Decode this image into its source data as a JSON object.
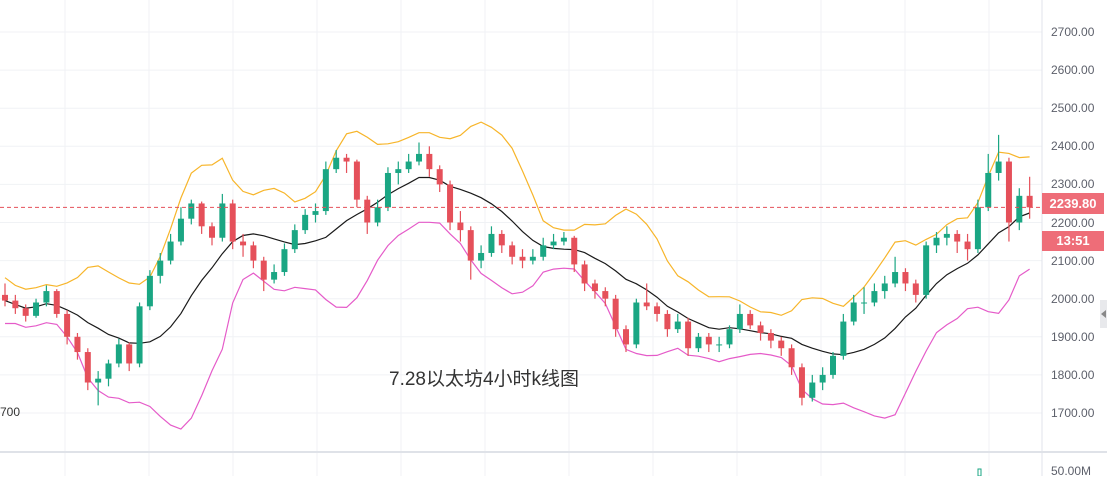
{
  "chart_data": {
    "type": "candlestick",
    "title": "7.28以太坊4小时k线图",
    "ylim": [
      1700,
      2700
    ],
    "y_ticks": [
      "2700.00",
      "2600.00",
      "2500.00",
      "2400.00",
      "2300.00",
      "2200.00",
      "2100.00",
      "2000.00",
      "1900.00",
      "1800.00",
      "1700.00"
    ],
    "left_partial_label": "700",
    "volume_tick": "50.00M",
    "last_price": "2239.80",
    "countdown": "13:51",
    "grid": true,
    "colors": {
      "up": "#1aa683",
      "down": "#e5505a",
      "upper_band": "#f7b52a",
      "lower_band": "#e55bc9",
      "middle_band": "#1a1a1a",
      "price_tag": "#ee6d78"
    },
    "ohlc": [
      [
        2010,
        2040,
        1980,
        1995
      ],
      [
        1995,
        2010,
        1960,
        1975
      ],
      [
        1975,
        1985,
        1940,
        1955
      ],
      [
        1955,
        2000,
        1950,
        1990
      ],
      [
        1990,
        2035,
        1980,
        2020
      ],
      [
        2020,
        2025,
        1950,
        1960
      ],
      [
        1960,
        1970,
        1880,
        1900
      ],
      [
        1900,
        1910,
        1840,
        1860
      ],
      [
        1860,
        1870,
        1760,
        1780
      ],
      [
        1780,
        1810,
        1720,
        1790
      ],
      [
        1790,
        1840,
        1770,
        1830
      ],
      [
        1830,
        1895,
        1820,
        1880
      ],
      [
        1880,
        1885,
        1810,
        1830
      ],
      [
        1830,
        1990,
        1820,
        1980
      ],
      [
        1980,
        2075,
        1970,
        2060
      ],
      [
        2060,
        2120,
        2040,
        2100
      ],
      [
        2100,
        2170,
        2090,
        2150
      ],
      [
        2150,
        2240,
        2140,
        2210
      ],
      [
        2210,
        2260,
        2195,
        2250
      ],
      [
        2250,
        2255,
        2170,
        2190
      ],
      [
        2190,
        2200,
        2140,
        2160
      ],
      [
        2160,
        2275,
        2150,
        2250
      ],
      [
        2250,
        2260,
        2130,
        2150
      ],
      [
        2150,
        2170,
        2110,
        2140
      ],
      [
        2140,
        2150,
        2080,
        2100
      ],
      [
        2100,
        2110,
        2020,
        2050
      ],
      [
        2050,
        2090,
        2040,
        2070
      ],
      [
        2070,
        2145,
        2060,
        2130
      ],
      [
        2130,
        2195,
        2120,
        2180
      ],
      [
        2180,
        2235,
        2170,
        2220
      ],
      [
        2220,
        2250,
        2200,
        2230
      ],
      [
        2230,
        2360,
        2220,
        2340
      ],
      [
        2340,
        2390,
        2330,
        2370
      ],
      [
        2370,
        2380,
        2330,
        2360
      ],
      [
        2360,
        2365,
        2240,
        2260
      ],
      [
        2260,
        2270,
        2170,
        2200
      ],
      [
        2200,
        2260,
        2190,
        2240
      ],
      [
        2240,
        2345,
        2230,
        2330
      ],
      [
        2330,
        2360,
        2300,
        2340
      ],
      [
        2340,
        2380,
        2330,
        2360
      ],
      [
        2360,
        2410,
        2350,
        2380
      ],
      [
        2380,
        2400,
        2320,
        2340
      ],
      [
        2340,
        2350,
        2280,
        2300
      ],
      [
        2300,
        2310,
        2180,
        2200
      ],
      [
        2200,
        2230,
        2150,
        2180
      ],
      [
        2180,
        2190,
        2050,
        2100
      ],
      [
        2100,
        2140,
        2080,
        2120
      ],
      [
        2120,
        2190,
        2110,
        2170
      ],
      [
        2170,
        2180,
        2120,
        2140
      ],
      [
        2140,
        2150,
        2090,
        2110
      ],
      [
        2110,
        2130,
        2080,
        2100
      ],
      [
        2100,
        2130,
        2090,
        2110
      ],
      [
        2110,
        2160,
        2100,
        2140
      ],
      [
        2140,
        2170,
        2130,
        2150
      ],
      [
        2150,
        2175,
        2140,
        2160
      ],
      [
        2160,
        2165,
        2070,
        2090
      ],
      [
        2090,
        2100,
        2020,
        2040
      ],
      [
        2040,
        2050,
        2000,
        2020
      ],
      [
        2020,
        2030,
        1980,
        2000
      ],
      [
        2000,
        2010,
        1900,
        1920
      ],
      [
        1920,
        1930,
        1860,
        1880
      ],
      [
        1880,
        2000,
        1870,
        1990
      ],
      [
        1990,
        2040,
        1970,
        1980
      ],
      [
        1980,
        1990,
        1940,
        1960
      ],
      [
        1960,
        1970,
        1900,
        1920
      ],
      [
        1920,
        1960,
        1910,
        1940
      ],
      [
        1940,
        1950,
        1850,
        1870
      ],
      [
        1870,
        1910,
        1860,
        1900
      ],
      [
        1900,
        1910,
        1860,
        1880
      ],
      [
        1880,
        1900,
        1860,
        1880
      ],
      [
        1880,
        1930,
        1870,
        1920
      ],
      [
        1920,
        1985,
        1910,
        1960
      ],
      [
        1960,
        1970,
        1920,
        1930
      ],
      [
        1930,
        1940,
        1890,
        1910
      ],
      [
        1910,
        1920,
        1870,
        1890
      ],
      [
        1890,
        1900,
        1850,
        1870
      ],
      [
        1870,
        1880,
        1800,
        1820
      ],
      [
        1820,
        1830,
        1720,
        1740
      ],
      [
        1740,
        1800,
        1730,
        1780
      ],
      [
        1780,
        1820,
        1760,
        1800
      ],
      [
        1800,
        1860,
        1790,
        1850
      ],
      [
        1850,
        1960,
        1840,
        1940
      ],
      [
        1940,
        2010,
        1930,
        1990
      ],
      [
        1990,
        2030,
        1960,
        1990
      ],
      [
        1990,
        2040,
        1980,
        2020
      ],
      [
        2020,
        2060,
        2000,
        2040
      ],
      [
        2040,
        2110,
        2030,
        2070
      ],
      [
        2070,
        2080,
        2020,
        2040
      ],
      [
        2040,
        2050,
        1990,
        2010
      ],
      [
        2010,
        2150,
        2000,
        2140
      ],
      [
        2140,
        2175,
        2120,
        2160
      ],
      [
        2160,
        2190,
        2140,
        2170
      ],
      [
        2170,
        2180,
        2120,
        2150
      ],
      [
        2150,
        2170,
        2100,
        2130
      ],
      [
        2130,
        2260,
        2120,
        2240
      ],
      [
        2240,
        2380,
        2230,
        2330
      ],
      [
        2330,
        2430,
        2310,
        2360
      ],
      [
        2360,
        2370,
        2150,
        2200
      ],
      [
        2200,
        2290,
        2180,
        2270
      ],
      [
        2270,
        2320,
        2210,
        2239.8
      ]
    ]
  }
}
